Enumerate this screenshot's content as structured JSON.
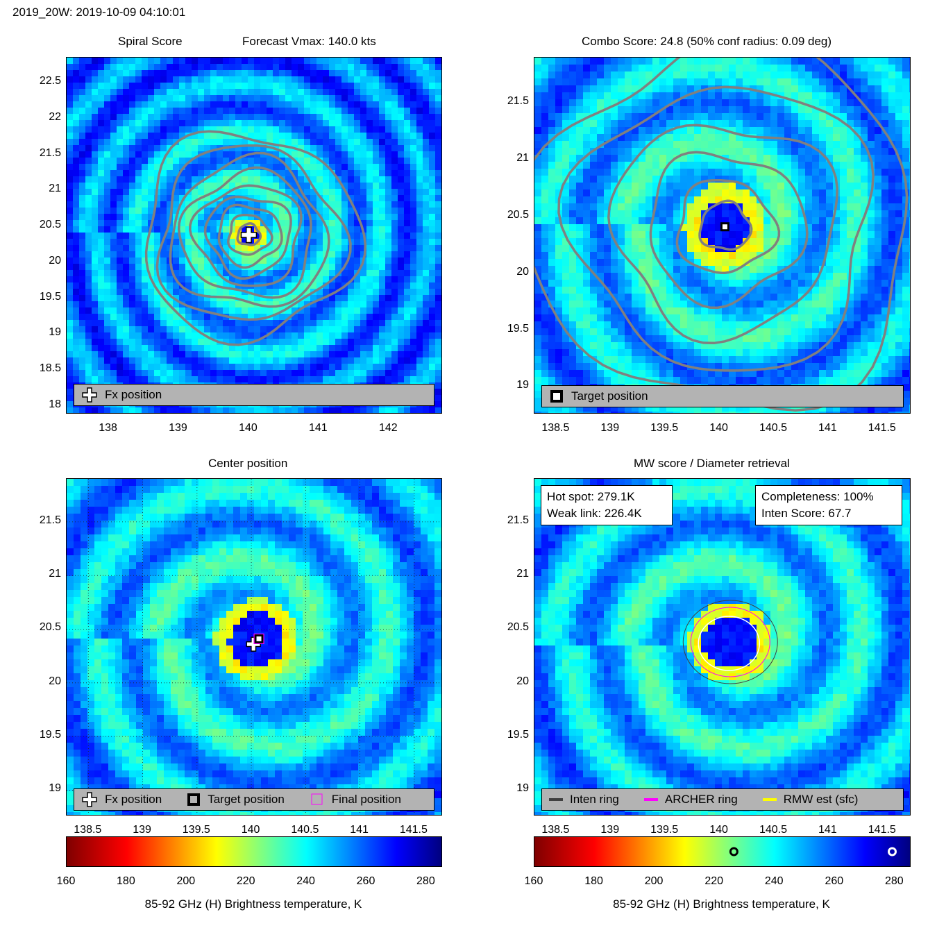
{
  "header": {
    "title": "2019_20W: 2019-10-09 04:10:01"
  },
  "colors": {
    "contour": "#808080",
    "legend_bg": "#b3b3b3",
    "colormap": [
      "#7f0000",
      "#ff0000",
      "#ff8000",
      "#ffff00",
      "#80ff80",
      "#00ffff",
      "#0080ff",
      "#0000ff",
      "#00007f"
    ]
  },
  "panels": {
    "spiral": {
      "title": "Spiral Score",
      "subtitle": "Forecast Vmax: 140.0 kts",
      "legend": [
        "Fx position"
      ]
    },
    "combo": {
      "title": "Combo Score: 24.8  (50% conf radius: 0.09 deg)",
      "legend": [
        "Target position"
      ]
    },
    "center": {
      "title": "Center position",
      "legend": [
        "Fx position",
        "Target position",
        "Final position"
      ]
    },
    "mw": {
      "title": "MW score / Diameter retrieval",
      "hot_spot": "Hot spot: 279.1K",
      "weak_link": "Weak link: 226.4K",
      "completeness": "Completeness: 100%",
      "inten_score": "Inten Score: 67.7",
      "legend": [
        "Inten ring",
        "ARCHER ring",
        "RMW est (sfc)"
      ]
    }
  },
  "colorbar": {
    "label": "85-92 GHz (H) Brightness temperature, K",
    "ticks": [
      "160",
      "180",
      "200",
      "220",
      "240",
      "260",
      "280"
    ],
    "markers": {
      "weak_link_K": 226.4,
      "hot_spot_K": 279.1
    }
  },
  "chart_data": [
    {
      "type": "heatmap",
      "title": "Spiral Score",
      "annotation": "Forecast Vmax: 140.0 kts",
      "x_ticks": [
        "138",
        "139",
        "140",
        "141",
        "142"
      ],
      "y_ticks": [
        "22.5",
        "22",
        "21.5",
        "21",
        "20.5",
        "20",
        "19.5",
        "19",
        "18.5",
        "18"
      ],
      "xlim": [
        137.4,
        142.75
      ],
      "ylim": [
        17.9,
        22.85
      ],
      "center": {
        "lon": 140.0,
        "lat": 20.38
      },
      "fx_position": {
        "lon": 140.0,
        "lat": 20.38
      }
    },
    {
      "type": "heatmap",
      "title": "Combo Score: 24.8  (50% conf radius: 0.09 deg)",
      "x_ticks": [
        "138.5",
        "139",
        "139.5",
        "140",
        "140.5",
        "141",
        "141.5"
      ],
      "y_ticks": [
        "21.5",
        "21",
        "20.5",
        "20",
        "19.5",
        "19"
      ],
      "xlim": [
        138.3,
        141.75
      ],
      "ylim": [
        18.77,
        21.9
      ],
      "center": {
        "lon": 140.05,
        "lat": 20.41
      },
      "target_position": {
        "lon": 140.05,
        "lat": 20.41
      }
    },
    {
      "type": "heatmap",
      "title": "Center position",
      "x_ticks": [
        "138.5",
        "139",
        "139.5",
        "140",
        "140.5",
        "141",
        "141.5"
      ],
      "y_ticks": [
        "21.5",
        "21",
        "20.5",
        "20",
        "19.5",
        "19"
      ],
      "xlim": [
        138.3,
        141.75
      ],
      "ylim": [
        18.77,
        21.9
      ],
      "center": {
        "lon": 140.05,
        "lat": 20.4
      },
      "fx_position": {
        "lon": 140.02,
        "lat": 20.36
      },
      "target_position": {
        "lon": 140.07,
        "lat": 20.41
      },
      "final_position": {
        "lon": 140.07,
        "lat": 20.41
      }
    },
    {
      "type": "heatmap",
      "title": "MW score / Diameter retrieval",
      "x_ticks": [
        "138.5",
        "139",
        "139.5",
        "140",
        "140.5",
        "141",
        "141.5"
      ],
      "y_ticks": [
        "21.5",
        "21",
        "20.5",
        "20",
        "19.5",
        "19"
      ],
      "xlim": [
        138.3,
        141.75
      ],
      "ylim": [
        18.77,
        21.9
      ],
      "center": {
        "lon": 140.1,
        "lat": 20.38
      },
      "hot_spot_K": 279.1,
      "weak_link_K": 226.4,
      "completeness_pct": 100,
      "inten_score": 67.7
    }
  ]
}
